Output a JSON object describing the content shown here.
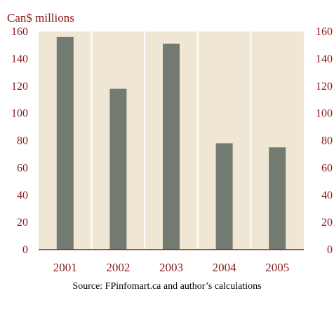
{
  "chart_data": {
    "type": "bar",
    "ylabel": "Can$ millions",
    "categories": [
      "2001",
      "2002",
      "2003",
      "2004",
      "2005"
    ],
    "values": [
      156,
      118,
      151,
      78,
      75
    ],
    "ylim": [
      0,
      160
    ],
    "yticks": [
      0,
      20,
      40,
      60,
      80,
      100,
      120,
      140,
      160
    ],
    "grid": "vertical separators",
    "secondary_y_axis": true,
    "source": "Source: FPinfomart.ca and author’s calculations"
  },
  "colors": {
    "plot_background": "#efe6d4",
    "bar": "#737a72",
    "text": "#8b1a1a",
    "axis": "#8b1a1a",
    "grid": "#ffffff"
  }
}
